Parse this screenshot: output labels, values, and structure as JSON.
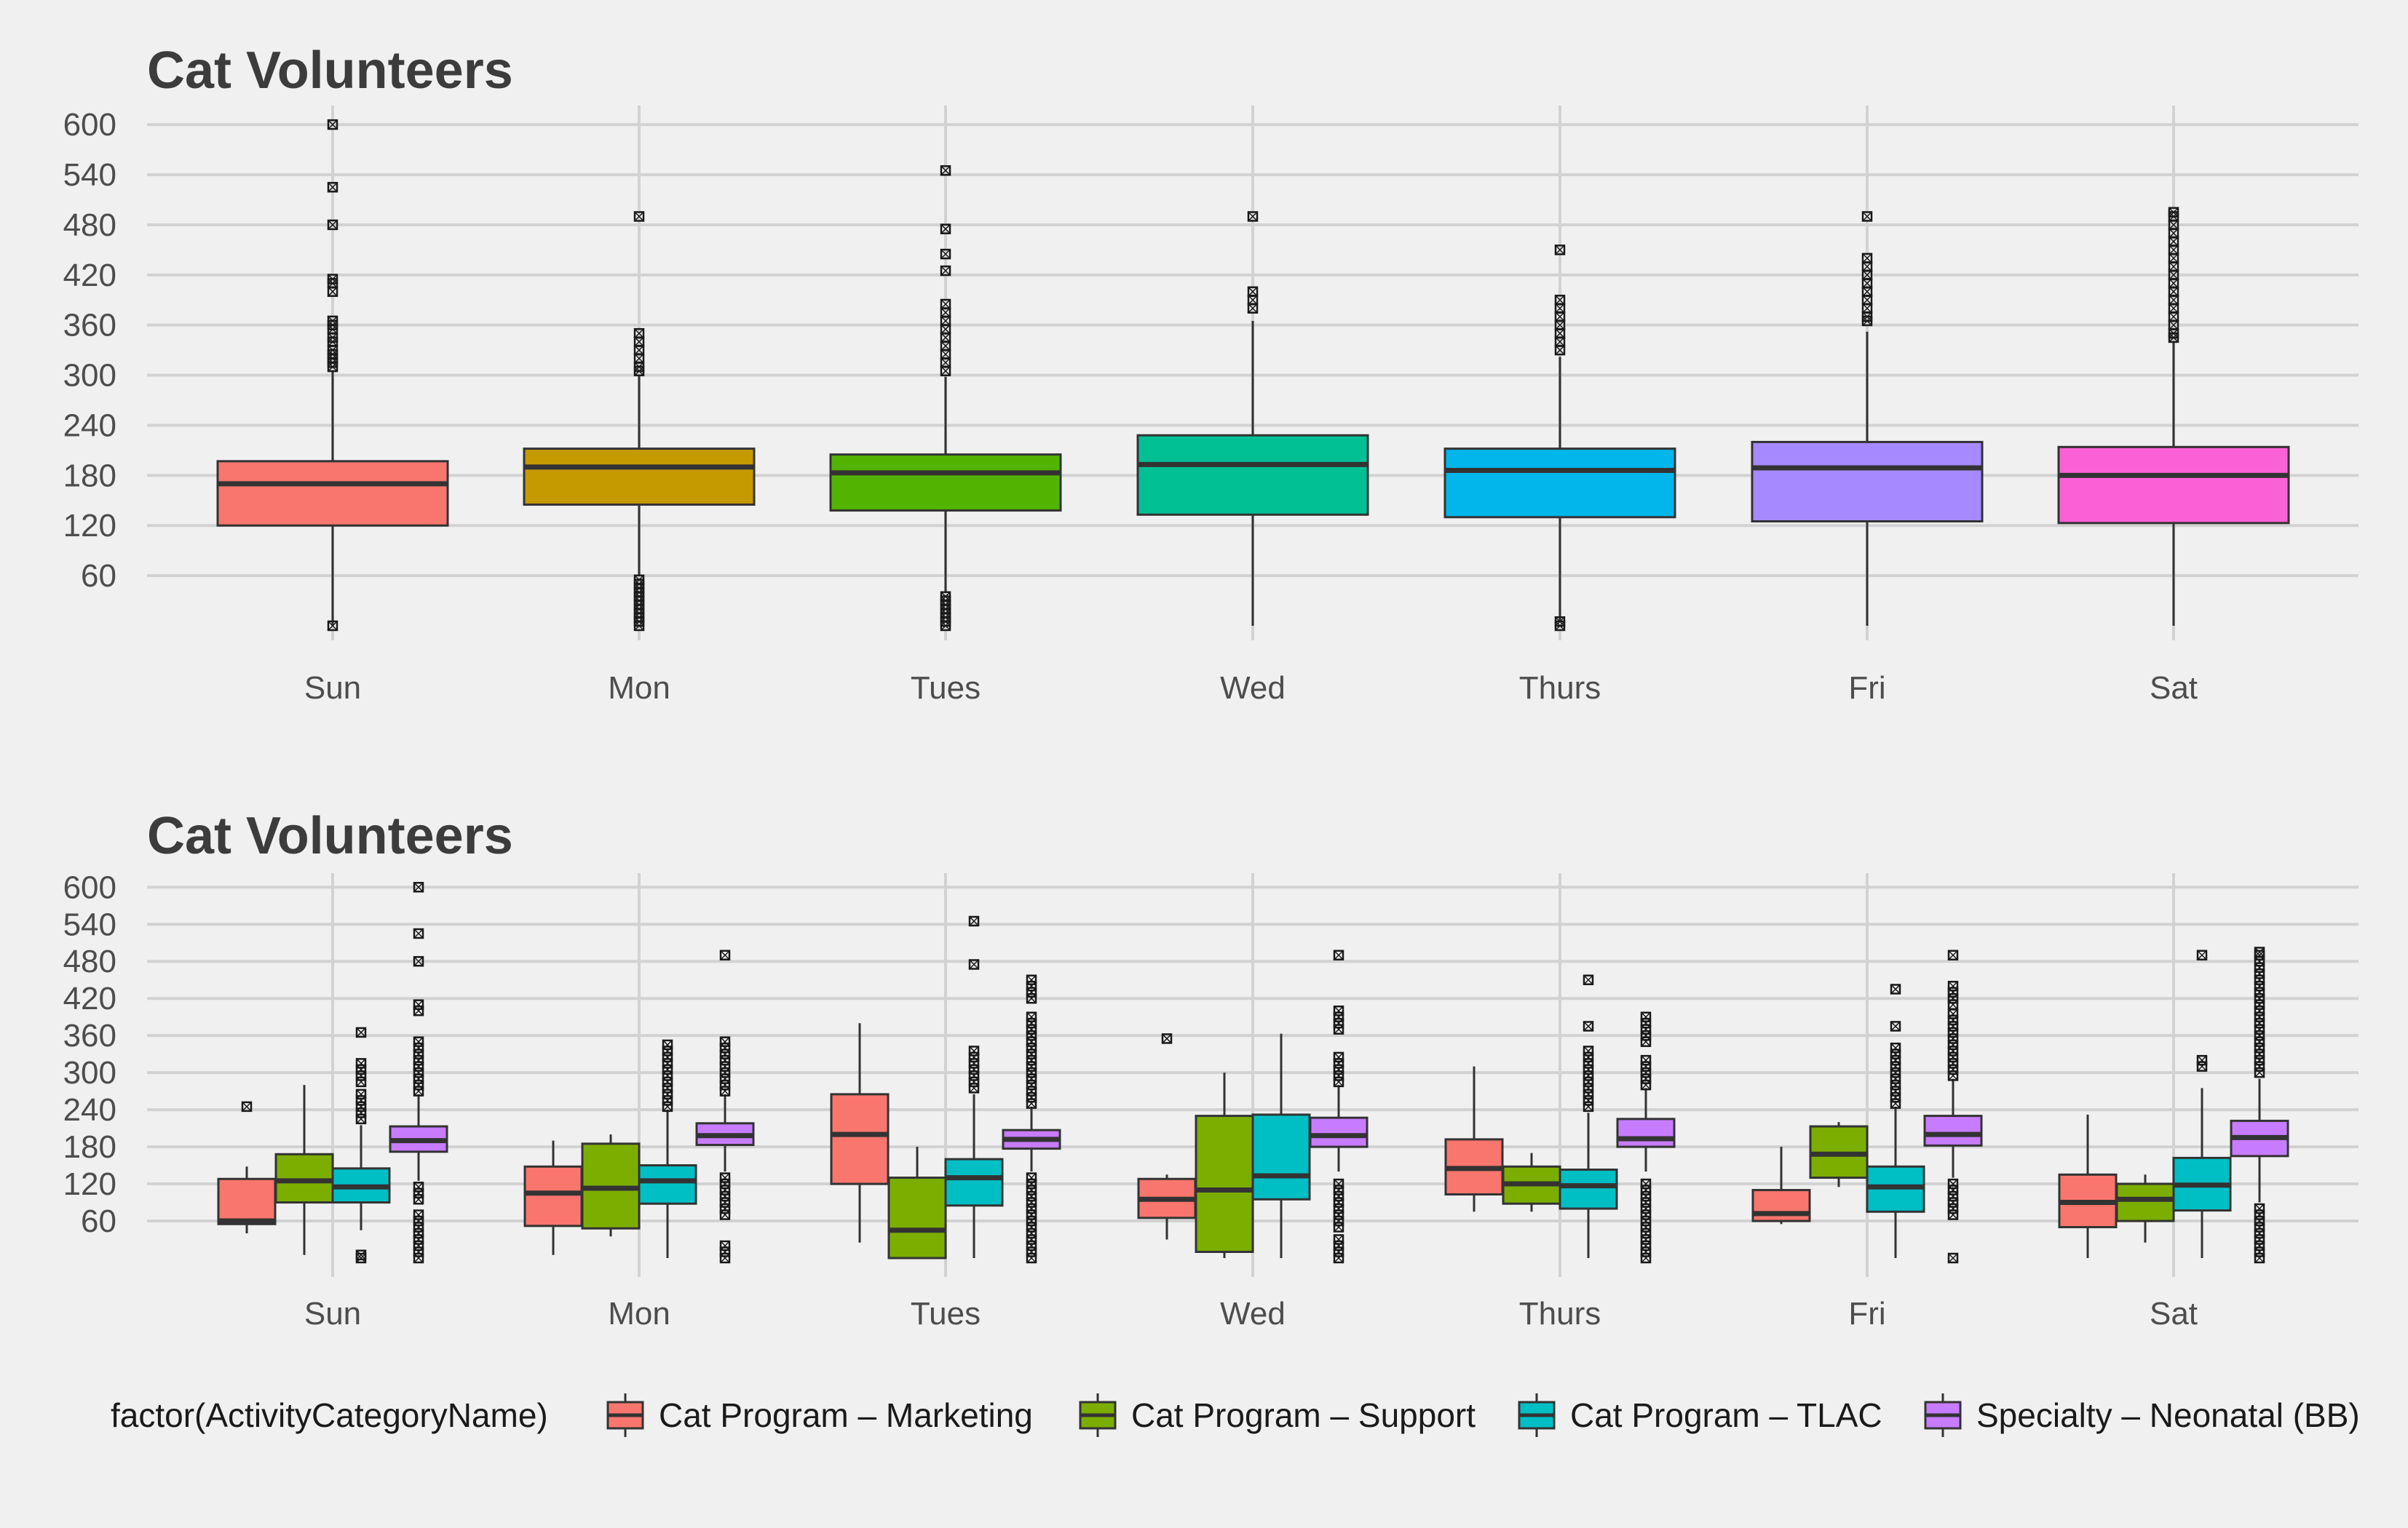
{
  "chart_data": [
    {
      "type": "boxplot",
      "title": "Cat Volunteers",
      "xlabel": "",
      "ylabel": "",
      "ylim": [
        0,
        630
      ],
      "yticks": [
        60,
        120,
        180,
        240,
        300,
        360,
        420,
        480,
        540,
        600
      ],
      "categories": [
        "Sun",
        "Mon",
        "Tues",
        "Wed",
        "Thurs",
        "Fri",
        "Sat"
      ],
      "grid": true,
      "boxes": [
        {
          "category": "Sun",
          "color": "#F8766D",
          "whislo": 0,
          "q1": 120,
          "median": 170,
          "q3": 197,
          "whishi": 305,
          "outliers": [
            0,
            310,
            315,
            320,
            325,
            330,
            340,
            345,
            355,
            360,
            365,
            400,
            410,
            415,
            480,
            525,
            600
          ]
        },
        {
          "category": "Mon",
          "color": "#C49A00",
          "whislo": 60,
          "q1": 145,
          "median": 190,
          "q3": 212,
          "whishi": 300,
          "outliers": [
            0,
            5,
            10,
            15,
            20,
            25,
            30,
            35,
            40,
            45,
            50,
            55,
            305,
            310,
            320,
            330,
            340,
            350,
            490
          ]
        },
        {
          "category": "Tues",
          "color": "#53B400",
          "whislo": 40,
          "q1": 138,
          "median": 183,
          "q3": 205,
          "whishi": 298,
          "outliers": [
            0,
            5,
            10,
            15,
            20,
            25,
            30,
            35,
            305,
            315,
            325,
            335,
            345,
            355,
            365,
            375,
            385,
            425,
            445,
            475,
            545
          ]
        },
        {
          "category": "Wed",
          "color": "#00C094",
          "whislo": 0,
          "q1": 133,
          "median": 193,
          "q3": 228,
          "whishi": 365,
          "outliers": [
            380,
            390,
            400,
            490
          ]
        },
        {
          "category": "Thurs",
          "color": "#00B6EB",
          "whislo": 5,
          "q1": 130,
          "median": 186,
          "q3": 212,
          "whishi": 322,
          "outliers": [
            0,
            5,
            330,
            340,
            350,
            360,
            370,
            380,
            390,
            450
          ]
        },
        {
          "category": "Fri",
          "color": "#A58AFF",
          "whislo": 0,
          "q1": 125,
          "median": 189,
          "q3": 220,
          "whishi": 352,
          "outliers": [
            365,
            370,
            380,
            390,
            400,
            410,
            420,
            430,
            440,
            490
          ]
        },
        {
          "category": "Sat",
          "color": "#FB61D7",
          "whislo": 0,
          "q1": 123,
          "median": 180,
          "q3": 214,
          "whishi": 340,
          "outliers": [
            345,
            350,
            360,
            370,
            380,
            390,
            400,
            410,
            420,
            430,
            440,
            450,
            460,
            470,
            480,
            490,
            495
          ]
        }
      ]
    },
    {
      "type": "boxplot",
      "title": "Cat Volunteers",
      "xlabel": "",
      "ylabel": "",
      "ylim": [
        0,
        630
      ],
      "yticks": [
        60,
        120,
        180,
        240,
        300,
        360,
        420,
        480,
        540,
        600
      ],
      "categories": [
        "Sun",
        "Mon",
        "Tues",
        "Wed",
        "Thurs",
        "Fri",
        "Sat"
      ],
      "grid": true,
      "legend": {
        "title": "factor(ActivityCategoryName)",
        "position": "bottom",
        "entries": [
          {
            "name": "Cat Program – Marketing",
            "color": "#F8766D"
          },
          {
            "name": "Cat Program – Support",
            "color": "#7CAE00"
          },
          {
            "name": "Cat Program – TLAC",
            "color": "#00BFC4"
          },
          {
            "name": "Specialty – Neonatal (BB)",
            "color": "#C77CFF"
          }
        ]
      },
      "groups": [
        {
          "category": "Sun",
          "boxes": [
            {
              "series": "Cat Program – Marketing",
              "whislo": 40,
              "q1": 55,
              "median": 60,
              "q3": 128,
              "whishi": 148,
              "outliers": [
                245
              ]
            },
            {
              "series": "Cat Program – Support",
              "whislo": 5,
              "q1": 90,
              "median": 125,
              "q3": 168,
              "whishi": 280,
              "outliers": []
            },
            {
              "series": "Cat Program – TLAC",
              "whislo": 45,
              "q1": 90,
              "median": 115,
              "q3": 145,
              "whishi": 215,
              "outliers": [
                0,
                5,
                225,
                235,
                245,
                255,
                265,
                285,
                295,
                305,
                315,
                365
              ]
            },
            {
              "series": "Specialty – Neonatal (BB)",
              "whislo": 125,
              "q1": 172,
              "median": 190,
              "q3": 213,
              "whishi": 265,
              "outliers": [
                0,
                10,
                20,
                30,
                40,
                50,
                60,
                70,
                95,
                105,
                115,
                270,
                280,
                290,
                300,
                310,
                320,
                330,
                340,
                350,
                400,
                410,
                480,
                525,
                600
              ]
            }
          ]
        },
        {
          "category": "Mon",
          "boxes": [
            {
              "series": "Cat Program – Marketing",
              "whislo": 5,
              "q1": 52,
              "median": 105,
              "q3": 148,
              "whishi": 190,
              "outliers": []
            },
            {
              "series": "Cat Program – Support",
              "whislo": 35,
              "q1": 48,
              "median": 113,
              "q3": 185,
              "whishi": 200,
              "outliers": []
            },
            {
              "series": "Cat Program – TLAC",
              "whislo": 0,
              "q1": 88,
              "median": 125,
              "q3": 150,
              "whishi": 240,
              "outliers": [
                245,
                255,
                265,
                275,
                285,
                295,
                305,
                315,
                325,
                335,
                345
              ]
            },
            {
              "series": "Specialty – Neonatal (BB)",
              "whislo": 140,
              "q1": 183,
              "median": 198,
              "q3": 218,
              "whishi": 265,
              "outliers": [
                0,
                10,
                20,
                70,
                80,
                90,
                100,
                110,
                120,
                130,
                270,
                280,
                290,
                300,
                310,
                320,
                330,
                340,
                350,
                490
              ]
            }
          ]
        },
        {
          "category": "Tues",
          "boxes": [
            {
              "series": "Cat Program – Marketing",
              "whislo": 25,
              "q1": 120,
              "median": 200,
              "q3": 265,
              "whishi": 380,
              "outliers": []
            },
            {
              "series": "Cat Program – Support",
              "whislo": 0,
              "q1": 0,
              "median": 45,
              "q3": 130,
              "whishi": 180,
              "outliers": []
            },
            {
              "series": "Cat Program – TLAC",
              "whislo": 0,
              "q1": 85,
              "median": 130,
              "q3": 160,
              "whishi": 265,
              "outliers": [
                275,
                285,
                295,
                305,
                315,
                325,
                335,
                475,
                545
              ]
            },
            {
              "series": "Specialty – Neonatal (BB)",
              "whislo": 140,
              "q1": 177,
              "median": 192,
              "q3": 207,
              "whishi": 245,
              "outliers": [
                0,
                10,
                20,
                30,
                40,
                50,
                60,
                70,
                80,
                90,
                100,
                110,
                120,
                130,
                250,
                260,
                270,
                280,
                290,
                300,
                310,
                320,
                330,
                340,
                350,
                360,
                370,
                380,
                390,
                420,
                430,
                440,
                450
              ]
            }
          ]
        },
        {
          "category": "Wed",
          "boxes": [
            {
              "series": "Cat Program – Marketing",
              "whislo": 30,
              "q1": 65,
              "median": 95,
              "q3": 128,
              "whishi": 135,
              "outliers": [
                355
              ]
            },
            {
              "series": "Cat Program – Support",
              "whislo": 0,
              "q1": 10,
              "median": 110,
              "q3": 230,
              "whishi": 300,
              "outliers": []
            },
            {
              "series": "Cat Program – TLAC",
              "whislo": 0,
              "q1": 95,
              "median": 133,
              "q3": 232,
              "whishi": 363,
              "outliers": []
            },
            {
              "series": "Specialty – Neonatal (BB)",
              "whislo": 140,
              "q1": 180,
              "median": 198,
              "q3": 227,
              "whishi": 280,
              "outliers": [
                0,
                10,
                20,
                30,
                50,
                60,
                70,
                80,
                90,
                100,
                110,
                120,
                285,
                295,
                305,
                315,
                325,
                370,
                380,
                390,
                400,
                490
              ]
            }
          ]
        },
        {
          "category": "Thurs",
          "boxes": [
            {
              "series": "Cat Program – Marketing",
              "whislo": 75,
              "q1": 103,
              "median": 145,
              "q3": 192,
              "whishi": 310,
              "outliers": []
            },
            {
              "series": "Cat Program – Support",
              "whislo": 75,
              "q1": 88,
              "median": 120,
              "q3": 148,
              "whishi": 170,
              "outliers": []
            },
            {
              "series": "Cat Program – TLAC",
              "whislo": 0,
              "q1": 80,
              "median": 117,
              "q3": 143,
              "whishi": 235,
              "outliers": [
                245,
                255,
                265,
                275,
                285,
                295,
                305,
                315,
                325,
                335,
                375,
                450
              ]
            },
            {
              "series": "Specialty – Neonatal (BB)",
              "whislo": 140,
              "q1": 180,
              "median": 193,
              "q3": 225,
              "whishi": 275,
              "outliers": [
                0,
                10,
                20,
                30,
                40,
                50,
                60,
                70,
                80,
                90,
                100,
                110,
                120,
                280,
                290,
                300,
                310,
                320,
                350,
                360,
                370,
                380,
                390
              ]
            }
          ]
        },
        {
          "category": "Fri",
          "boxes": [
            {
              "series": "Cat Program – Marketing",
              "whislo": 55,
              "q1": 60,
              "median": 72,
              "q3": 110,
              "whishi": 180,
              "outliers": []
            },
            {
              "series": "Cat Program – Support",
              "whislo": 115,
              "q1": 130,
              "median": 168,
              "q3": 213,
              "whishi": 220,
              "outliers": []
            },
            {
              "series": "Cat Program – TLAC",
              "whislo": 0,
              "q1": 75,
              "median": 115,
              "q3": 148,
              "whishi": 245,
              "outliers": [
                250,
                260,
                270,
                280,
                290,
                300,
                310,
                320,
                330,
                340,
                375,
                435
              ]
            },
            {
              "series": "Specialty – Neonatal (BB)",
              "whislo": 130,
              "q1": 182,
              "median": 200,
              "q3": 230,
              "whishi": 290,
              "outliers": [
                0,
                70,
                80,
                90,
                100,
                110,
                120,
                295,
                305,
                315,
                325,
                335,
                345,
                355,
                365,
                375,
                385,
                395,
                410,
                420,
                430,
                440,
                490
              ]
            }
          ]
        },
        {
          "category": "Sat",
          "boxes": [
            {
              "series": "Cat Program – Marketing",
              "whislo": 0,
              "q1": 50,
              "median": 90,
              "q3": 135,
              "whishi": 232,
              "outliers": []
            },
            {
              "series": "Cat Program – Support",
              "whislo": 25,
              "q1": 60,
              "median": 95,
              "q3": 120,
              "whishi": 135,
              "outliers": []
            },
            {
              "series": "Cat Program – TLAC",
              "whislo": 0,
              "q1": 77,
              "median": 118,
              "q3": 162,
              "whishi": 275,
              "outliers": [
                310,
                320,
                490
              ]
            },
            {
              "series": "Specialty – Neonatal (BB)",
              "whislo": 90,
              "q1": 165,
              "median": 195,
              "q3": 222,
              "whishi": 290,
              "outliers": [
                0,
                10,
                20,
                30,
                40,
                50,
                60,
                70,
                80,
                300,
                310,
                320,
                330,
                340,
                350,
                360,
                370,
                380,
                390,
                400,
                410,
                420,
                430,
                440,
                450,
                460,
                470,
                480,
                490,
                495
              ]
            }
          ]
        }
      ]
    }
  ]
}
